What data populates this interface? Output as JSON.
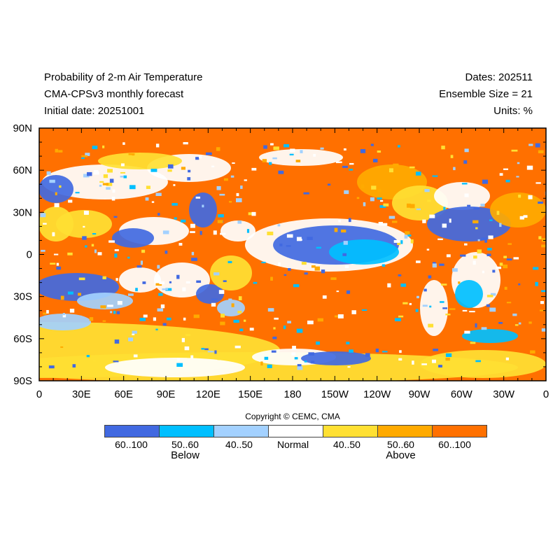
{
  "header": {
    "title": "Probability of 2-m Air Temperature",
    "model": "CMA-CPSv3 monthly forecast",
    "initial": "Initial date: 20251001",
    "dates": "Dates: 202511",
    "ensemble": "Ensemble Size = 21",
    "units": "Units: %"
  },
  "map": {
    "projection": "cylindrical equidistant",
    "lat_labels": [
      "90N",
      "60N",
      "30N",
      "0",
      "30S",
      "60S",
      "90S"
    ],
    "lon_labels": [
      "0",
      "30E",
      "60E",
      "90E",
      "120E",
      "150E",
      "180",
      "150W",
      "120W",
      "90W",
      "60W",
      "30W",
      "0"
    ]
  },
  "legend": {
    "copyright": "Copyright © CEMC, CMA",
    "bins": [
      {
        "label": "60..100",
        "color": "#4169e1"
      },
      {
        "label": "50..60",
        "color": "#00bfff"
      },
      {
        "label": "40..50",
        "color": "#a3d1ff"
      },
      {
        "label": "Normal",
        "color": "#ffffff"
      },
      {
        "label": "40..50",
        "color": "#ffe033"
      },
      {
        "label": "50..60",
        "color": "#ffaa00"
      },
      {
        "label": "60..100",
        "color": "#ff7000"
      }
    ],
    "below": "Below",
    "above": "Above"
  }
}
